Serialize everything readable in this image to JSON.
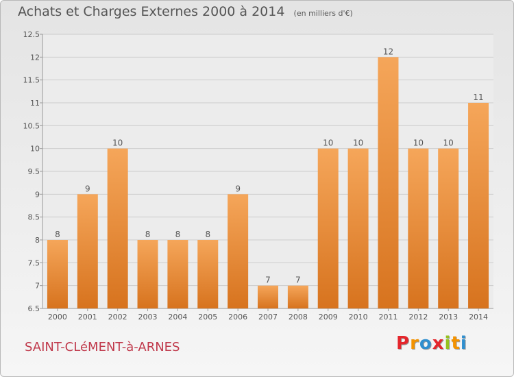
{
  "header": {
    "title": "Achats et Charges Externes 2000 à 2014",
    "subtitle": "(en milliers d'€)"
  },
  "footer": {
    "commune": "SAINT-CLéMENT-à-ARNES",
    "brand": "Proxiti",
    "brand_colors": [
      "#e4262c",
      "#f39200",
      "#2f8fcf",
      "#e4262c",
      "#95c11f",
      "#f39200",
      "#2f8fcf"
    ]
  },
  "chart_data": {
    "type": "bar",
    "categories": [
      "2000",
      "2001",
      "2002",
      "2003",
      "2004",
      "2005",
      "2006",
      "2007",
      "2008",
      "2009",
      "2010",
      "2011",
      "2012",
      "2013",
      "2014"
    ],
    "values": [
      8,
      9,
      10,
      8,
      8,
      8,
      9,
      7,
      7,
      10,
      10,
      12,
      10,
      10,
      11
    ],
    "data_labels": [
      "8",
      "9",
      "10",
      "8",
      "8",
      "8",
      "9",
      "7",
      "7",
      "10",
      "10",
      "12",
      "10",
      "10",
      "11"
    ],
    "ylim": [
      6.5,
      12.5
    ],
    "yticks": [
      6.5,
      7,
      7.5,
      8,
      8.5,
      9,
      9.5,
      10,
      10.5,
      11,
      11.5,
      12,
      12.5
    ],
    "ytick_labels": [
      "6.5",
      "7",
      "7.5",
      "8",
      "8.5",
      "9",
      "9.5",
      "10",
      "10.5",
      "11",
      "11.5",
      "12",
      "12.5"
    ],
    "grid": true,
    "colors": {
      "bar_top": "#f5a65a",
      "bar_bottom": "#d7731e",
      "label": "#555555",
      "grid": "#cccccc"
    }
  }
}
